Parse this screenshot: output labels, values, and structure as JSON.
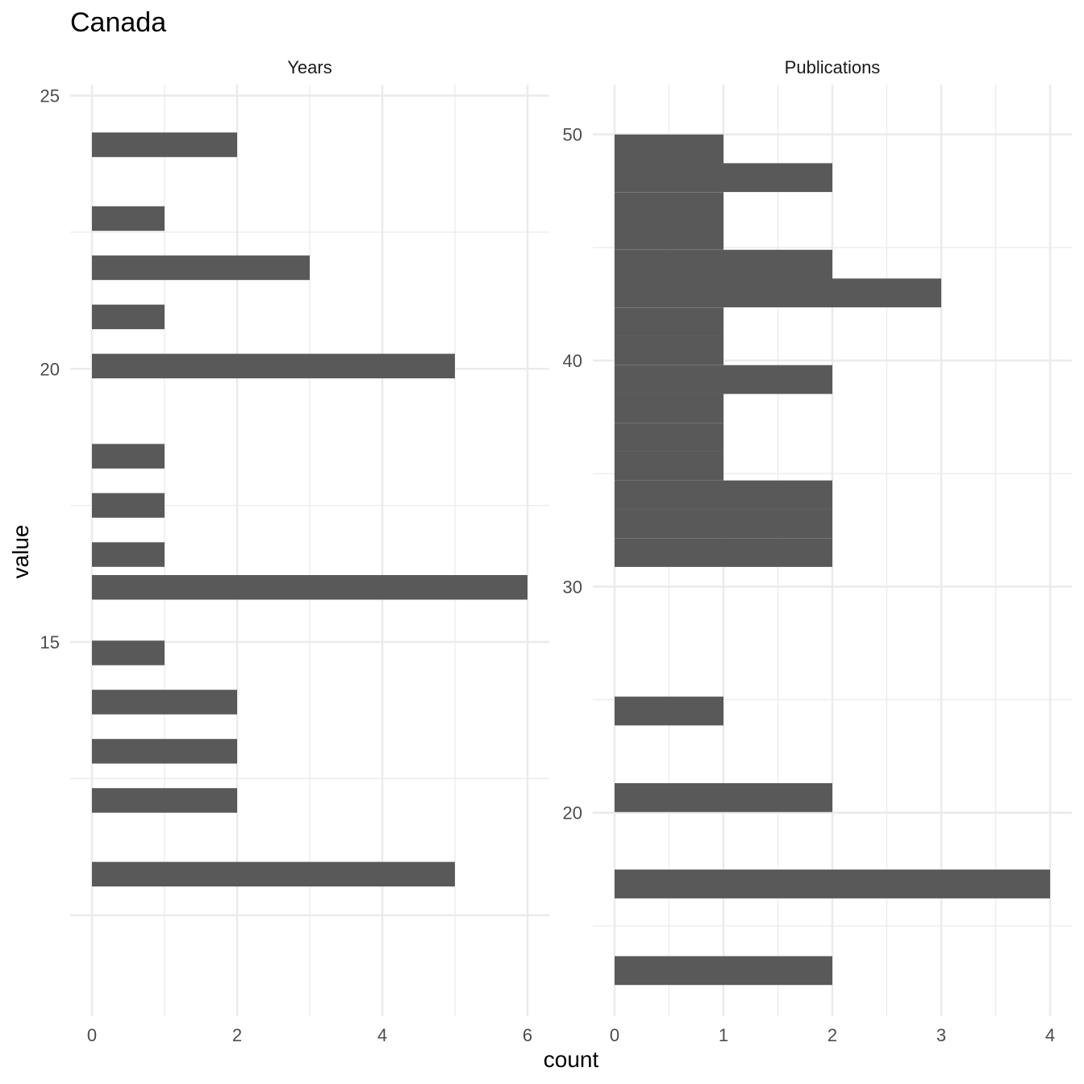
{
  "chart_data": {
    "type": "bar",
    "orientation": "horizontal",
    "title": "Canada",
    "xlabel": "count",
    "ylabel": "value",
    "grid": true,
    "colors": {
      "bar": "#595959",
      "grid": "#ebebeb"
    },
    "panels": [
      {
        "name": "Years",
        "xlim": [
          0,
          6.1
        ],
        "ylim": [
          8.15,
          25.2
        ],
        "x_ticks": [
          0,
          2,
          4,
          6
        ],
        "y_ticks": [
          15,
          20,
          25
        ],
        "bin_width": 0.45,
        "bars": [
          {
            "y": 24.1,
            "count": 2
          },
          {
            "y": 22.75,
            "count": 1
          },
          {
            "y": 21.85,
            "count": 3
          },
          {
            "y": 20.95,
            "count": 1
          },
          {
            "y": 20.05,
            "count": 5
          },
          {
            "y": 18.4,
            "count": 1
          },
          {
            "y": 17.5,
            "count": 1
          },
          {
            "y": 16.6,
            "count": 1
          },
          {
            "y": 16.0,
            "count": 6
          },
          {
            "y": 14.8,
            "count": 1
          },
          {
            "y": 13.9,
            "count": 2
          },
          {
            "y": 13.0,
            "count": 2
          },
          {
            "y": 12.1,
            "count": 2
          },
          {
            "y": 10.75,
            "count": 5
          }
        ]
      },
      {
        "name": "Publications",
        "xlim": [
          0,
          4.2
        ],
        "ylim": [
          11.0,
          52.2
        ],
        "x_ticks": [
          0,
          1,
          2,
          3,
          4
        ],
        "y_ticks": [
          20,
          30,
          40,
          50
        ],
        "bin_width": 1.275,
        "bars": [
          {
            "y": 49.36,
            "count": 1
          },
          {
            "y": 48.09,
            "count": 2
          },
          {
            "y": 46.81,
            "count": 1
          },
          {
            "y": 45.54,
            "count": 1
          },
          {
            "y": 44.26,
            "count": 2
          },
          {
            "y": 42.99,
            "count": 3
          },
          {
            "y": 41.71,
            "count": 1
          },
          {
            "y": 40.44,
            "count": 1
          },
          {
            "y": 39.16,
            "count": 2
          },
          {
            "y": 37.89,
            "count": 1
          },
          {
            "y": 36.61,
            "count": 1
          },
          {
            "y": 35.34,
            "count": 1
          },
          {
            "y": 34.06,
            "count": 2
          },
          {
            "y": 32.79,
            "count": 2
          },
          {
            "y": 31.51,
            "count": 2
          },
          {
            "y": 24.5,
            "count": 1
          },
          {
            "y": 20.67,
            "count": 2
          },
          {
            "y": 16.85,
            "count": 4
          },
          {
            "y": 13.02,
            "count": 2
          }
        ]
      }
    ]
  }
}
